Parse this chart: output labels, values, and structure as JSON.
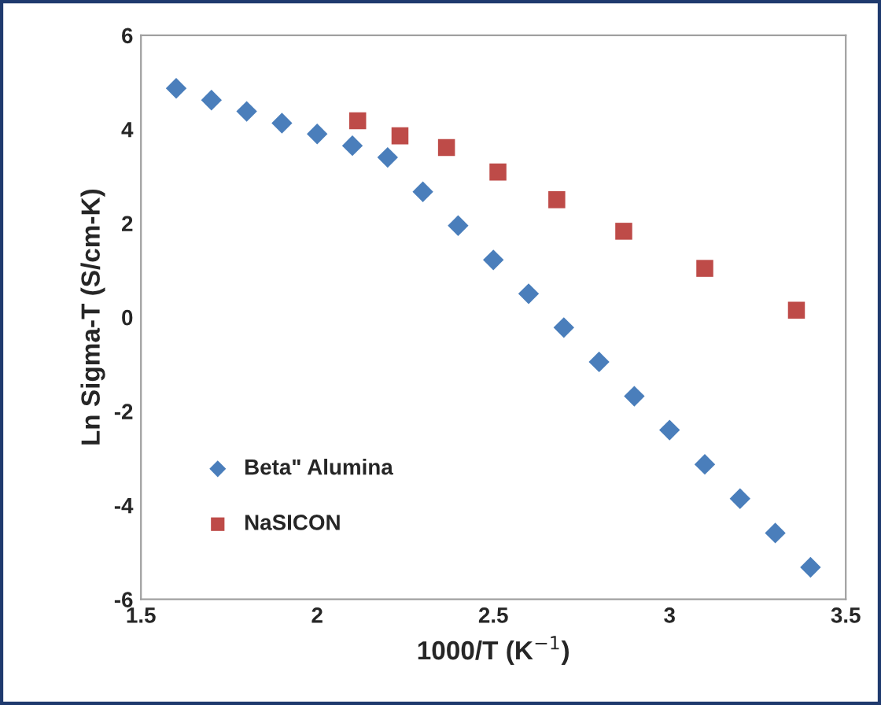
{
  "chart_data": {
    "type": "scatter",
    "xlabel": "1000/T (K$^{−1}$)",
    "ylabel": "Ln Sigma-T (S/cm-K)",
    "xlim": [
      1.5,
      3.5
    ],
    "xticks": [
      1.5,
      2,
      2.5,
      3,
      3.5
    ],
    "ylim": [
      -6,
      6
    ],
    "yticks": [
      -6,
      -4,
      -2,
      0,
      2,
      4,
      6
    ],
    "grid": false,
    "legend": "bottom left",
    "series": [
      {
        "name": "Beta\" Alumina",
        "color": "#4a7ebb",
        "marker": "diamond",
        "x": [
          1.6,
          1.7,
          1.8,
          1.9,
          2.0,
          2.1,
          2.2,
          2.3,
          2.4,
          2.5,
          2.6,
          2.7,
          2.8,
          2.9,
          3.0,
          3.1,
          3.2,
          3.3,
          3.4
        ],
        "values": [
          4.87,
          4.62,
          4.38,
          4.13,
          3.9,
          3.65,
          3.4,
          2.67,
          1.95,
          1.22,
          0.5,
          -0.22,
          -0.95,
          -1.68,
          -2.4,
          -3.13,
          -3.86,
          -4.59,
          -5.32
        ]
      },
      {
        "name": "NaSICON",
        "color": "#be4b48",
        "marker": "square",
        "x": [
          2.115,
          2.235,
          2.367,
          2.513,
          2.68,
          2.87,
          3.1,
          3.36
        ],
        "values": [
          4.18,
          3.86,
          3.61,
          3.09,
          2.5,
          1.83,
          1.04,
          0.15
        ]
      }
    ]
  }
}
